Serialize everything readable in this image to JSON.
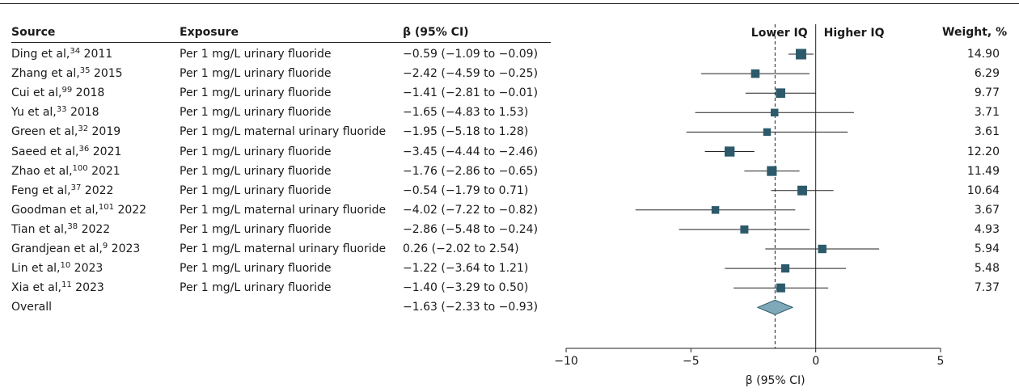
{
  "headers": {
    "source": "Source",
    "exposure": "Exposure",
    "beta": "β (95% CI)",
    "weight": "Weight, %",
    "lower": "Lower IQ",
    "higher": "Higher IQ"
  },
  "rows": [
    {
      "author": "Ding et al,",
      "ref": "34",
      "year": "2011",
      "exposure": "Per 1 mg/L urinary fluoride",
      "ci_text": "−0.59 (−1.09 to −0.09)",
      "weight": "14.90"
    },
    {
      "author": "Zhang et al,",
      "ref": "35",
      "year": "2015",
      "exposure": "Per 1 mg/L urinary fluoride",
      "ci_text": "−2.42 (−4.59 to −0.25)",
      "weight": "6.29"
    },
    {
      "author": "Cui et al,",
      "ref": "99",
      "year": "2018",
      "exposure": "Per 1 mg/L urinary fluoride",
      "ci_text": "−1.41 (−2.81 to −0.01)",
      "weight": "9.77"
    },
    {
      "author": "Yu et al,",
      "ref": "33",
      "year": "2018",
      "exposure": "Per 1 mg/L urinary fluoride",
      "ci_text": "−1.65 (−4.83 to 1.53)",
      "weight": "3.71"
    },
    {
      "author": "Green et al,",
      "ref": "32",
      "year": "2019",
      "exposure": "Per 1 mg/L maternal urinary fluoride",
      "ci_text": "−1.95 (−5.18 to 1.28)",
      "weight": "3.61"
    },
    {
      "author": "Saeed et al,",
      "ref": "36",
      "year": "2021",
      "exposure": "Per 1 mg/L urinary fluoride",
      "ci_text": "−3.45 (−4.44 to −2.46)",
      "weight": "12.20"
    },
    {
      "author": "Zhao et al,",
      "ref": "100",
      "year": "2021",
      "exposure": "Per 1 mg/L urinary fluoride",
      "ci_text": "−1.76 (−2.86 to −0.65)",
      "weight": "11.49"
    },
    {
      "author": "Feng et al,",
      "ref": "37",
      "year": "2022",
      "exposure": "Per 1 mg/L urinary fluoride",
      "ci_text": "−0.54 (−1.79 to 0.71)",
      "weight": "10.64"
    },
    {
      "author": "Goodman et al,",
      "ref": "101",
      "year": "2022",
      "exposure": "Per 1 mg/L maternal urinary fluoride",
      "ci_text": "−4.02 (−7.22 to −0.82)",
      "weight": "3.67"
    },
    {
      "author": "Tian et al,",
      "ref": "38",
      "year": "2022",
      "exposure": "Per 1 mg/L urinary fluoride",
      "ci_text": "−2.86 (−5.48 to −0.24)",
      "weight": "4.93"
    },
    {
      "author": "Grandjean et al,",
      "ref": "9",
      "year": "2023",
      "exposure": "Per 1 mg/L maternal urinary fluoride",
      "ci_text": "0.26 (−2.02 to 2.54)",
      "weight": "5.94"
    },
    {
      "author": "Lin et al,",
      "ref": "10",
      "year": "2023",
      "exposure": "Per 1 mg/L urinary fluoride",
      "ci_text": "−1.22 (−3.64 to 1.21)",
      "weight": "5.48"
    },
    {
      "author": "Xia et al,",
      "ref": "11",
      "year": "2023",
      "exposure": "Per 1 mg/L urinary fluoride",
      "ci_text": "−1.40 (−3.29 to 0.50)",
      "weight": "7.37"
    }
  ],
  "overall": {
    "label": "Overall",
    "ci_text": "−1.63 (−2.33 to −0.93)"
  },
  "colors": {
    "marker": "#2d5a6b",
    "diamond": "#7fa9b8",
    "diamond_stroke": "#2d5a6b",
    "axis": "#222222"
  },
  "chart_data": {
    "type": "forest",
    "xlabel": "β (95% CI)",
    "xlim": [
      -10,
      5
    ],
    "xticks": [
      -10,
      -5,
      0,
      5
    ],
    "null_line": 0,
    "overall_line": -1.63,
    "series": [
      {
        "name": "Ding et al, 2011",
        "estimate": -0.59,
        "lower": -1.09,
        "upper": -0.09,
        "weight": 14.9
      },
      {
        "name": "Zhang et al, 2015",
        "estimate": -2.42,
        "lower": -4.59,
        "upper": -0.25,
        "weight": 6.29
      },
      {
        "name": "Cui et al, 2018",
        "estimate": -1.41,
        "lower": -2.81,
        "upper": -0.01,
        "weight": 9.77
      },
      {
        "name": "Yu et al, 2018",
        "estimate": -1.65,
        "lower": -4.83,
        "upper": 1.53,
        "weight": 3.71
      },
      {
        "name": "Green et al, 2019",
        "estimate": -1.95,
        "lower": -5.18,
        "upper": 1.28,
        "weight": 3.61
      },
      {
        "name": "Saeed et al, 2021",
        "estimate": -3.45,
        "lower": -4.44,
        "upper": -2.46,
        "weight": 12.2
      },
      {
        "name": "Zhao et al, 2021",
        "estimate": -1.76,
        "lower": -2.86,
        "upper": -0.65,
        "weight": 11.49
      },
      {
        "name": "Feng et al, 2022",
        "estimate": -0.54,
        "lower": -1.79,
        "upper": 0.71,
        "weight": 10.64
      },
      {
        "name": "Goodman et al, 2022",
        "estimate": -4.02,
        "lower": -7.22,
        "upper": -0.82,
        "weight": 3.67
      },
      {
        "name": "Tian et al, 2022",
        "estimate": -2.86,
        "lower": -5.48,
        "upper": -0.24,
        "weight": 4.93
      },
      {
        "name": "Grandjean et al, 2023",
        "estimate": 0.26,
        "lower": -2.02,
        "upper": 2.54,
        "weight": 5.94
      },
      {
        "name": "Lin et al, 2023",
        "estimate": -1.22,
        "lower": -3.64,
        "upper": 1.21,
        "weight": 5.48
      },
      {
        "name": "Xia et al, 2023",
        "estimate": -1.4,
        "lower": -3.29,
        "upper": 0.5,
        "weight": 7.37
      }
    ],
    "overall": {
      "estimate": -1.63,
      "lower": -2.33,
      "upper": -0.93
    }
  }
}
